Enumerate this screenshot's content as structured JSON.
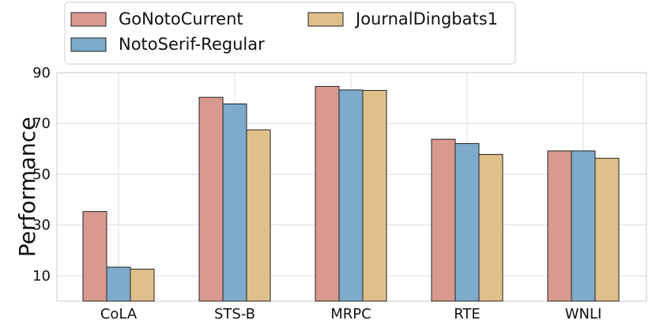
{
  "chart_data": {
    "type": "bar",
    "title": "",
    "xlabel": "",
    "ylabel": "Performance",
    "ylim": [
      0,
      90
    ],
    "yticks": [
      10,
      30,
      50,
      70,
      90
    ],
    "grid": true,
    "legend_position": "top-left, outside plot, two columns",
    "categories": [
      "CoLA",
      "STS-B",
      "MRPC",
      "RTE",
      "WNLI"
    ],
    "series": [
      {
        "name": "GoNotoCurrent",
        "color": "#d9998f",
        "values": [
          35.3,
          80.3,
          84.6,
          63.8,
          59.2
        ]
      },
      {
        "name": "NotoSerif-Regular",
        "color": "#7eaacb",
        "values": [
          13.4,
          77.7,
          83.2,
          62.1,
          59.2
        ]
      },
      {
        "name": "JournalDingbats1",
        "color": "#e0c08a",
        "values": [
          12.6,
          67.5,
          83.0,
          57.8,
          56.3
        ]
      }
    ]
  }
}
